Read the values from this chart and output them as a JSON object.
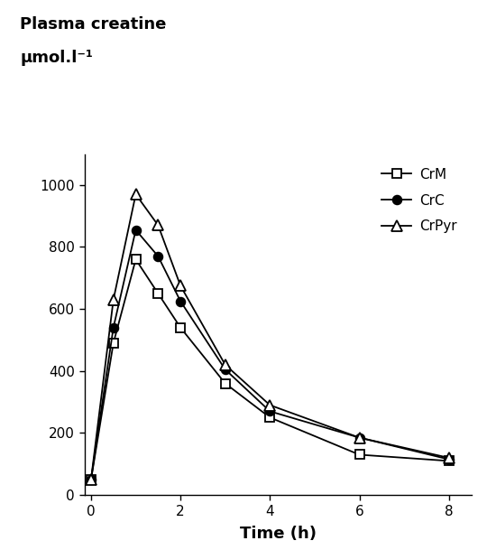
{
  "time": [
    0,
    0.5,
    1,
    1.5,
    2,
    3,
    4,
    6,
    8
  ],
  "CrM": [
    50,
    490,
    760,
    650,
    540,
    360,
    250,
    130,
    110
  ],
  "CrC": [
    50,
    540,
    855,
    770,
    625,
    405,
    270,
    185,
    115
  ],
  "CrPyr": [
    50,
    630,
    970,
    870,
    675,
    420,
    290,
    185,
    120
  ],
  "xlabel": "Time (h)",
  "ylabel_line1": "Plasma creatine",
  "ylabel_line2": "μmol.l⁻¹",
  "ylim": [
    0,
    1100
  ],
  "xlim": [
    -0.15,
    8.5
  ],
  "yticks": [
    0,
    200,
    400,
    600,
    800,
    1000
  ],
  "xticks": [
    0,
    2,
    4,
    6,
    8
  ],
  "legend_labels": [
    "CrM",
    "CrC",
    "CrPyr"
  ],
  "line_color": "#000000",
  "background_color": "#ffffff",
  "figsize": [
    5.5,
    6.09
  ],
  "dpi": 100
}
